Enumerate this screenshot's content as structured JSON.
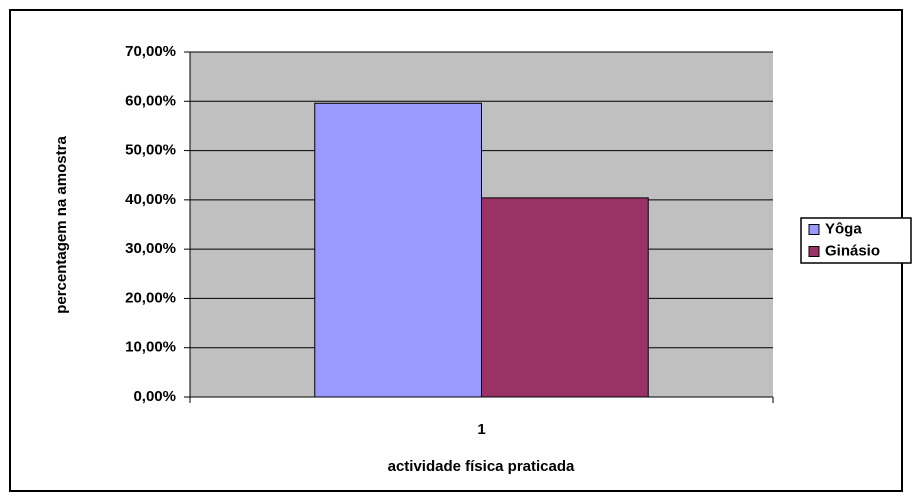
{
  "chart_data": {
    "type": "bar",
    "categories": [
      "1"
    ],
    "series": [
      {
        "name": "Yôga",
        "color": "#9999ff",
        "values": [
          59.6
        ]
      },
      {
        "name": "Ginásio",
        "color": "#993366",
        "values": [
          40.4
        ]
      }
    ],
    "ylabel": "percentagem na amostra",
    "xlabel": "actividade física praticada",
    "ylim": [
      0,
      70
    ],
    "yticks": [
      {
        "value": 0,
        "label": "0,00%"
      },
      {
        "value": 10,
        "label": "10,00%"
      },
      {
        "value": 20,
        "label": "20,00%"
      },
      {
        "value": 30,
        "label": "30,00%"
      },
      {
        "value": 40,
        "label": "40,00%"
      },
      {
        "value": 50,
        "label": "50,00%"
      },
      {
        "value": 60,
        "label": "60,00%"
      },
      {
        "value": 70,
        "label": "70,00%"
      }
    ],
    "grid": true,
    "legend": "right"
  }
}
